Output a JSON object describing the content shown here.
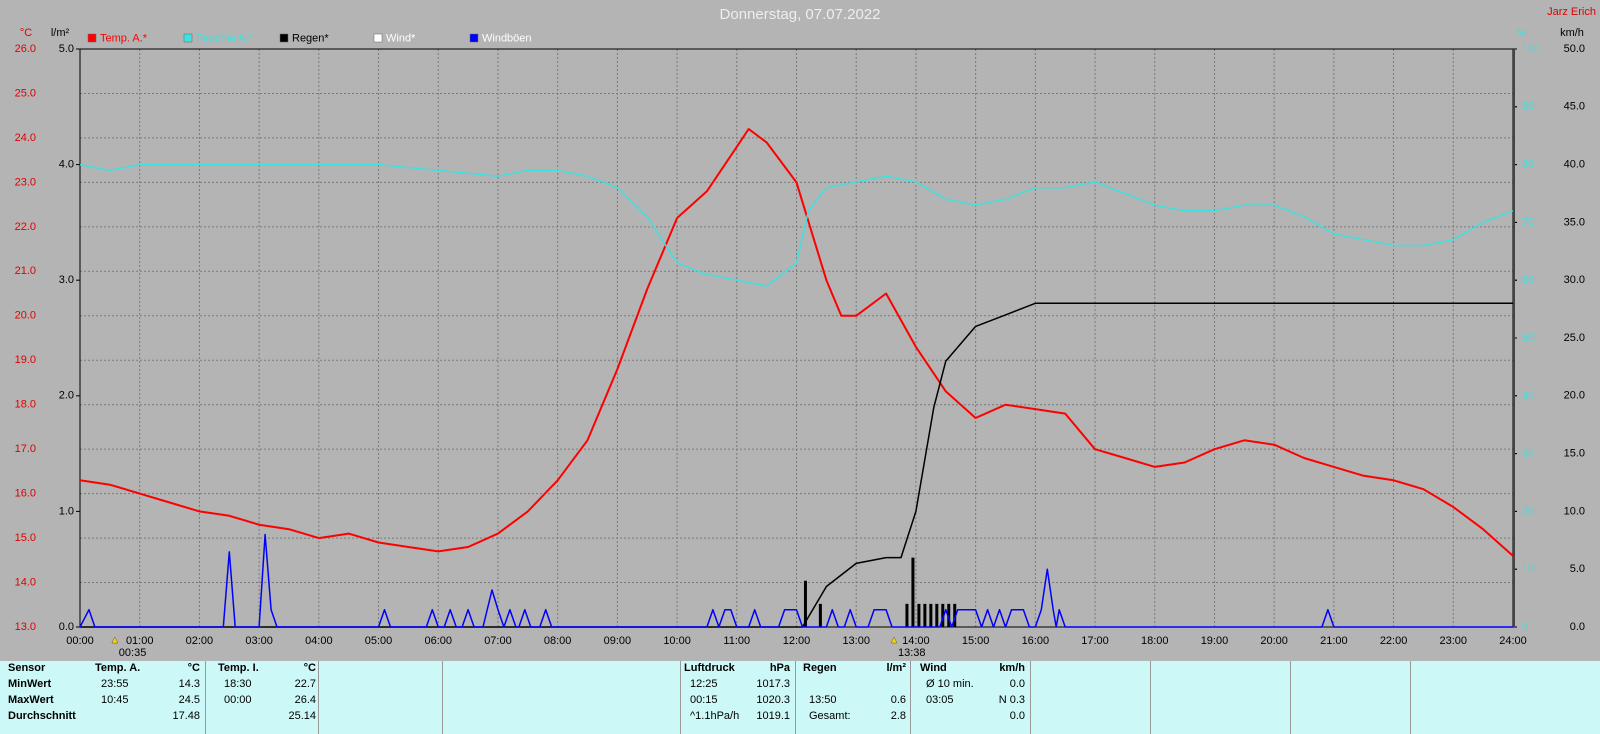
{
  "chart_data": {
    "type": "line",
    "title": "Donnerstag, 07.07.2022",
    "station": "Jarz Erich",
    "units": {
      "y": "°C",
      "y2": "l/m²",
      "y3": "%",
      "y4": "km/h"
    },
    "xlim": [
      0,
      24
    ],
    "xticks": [
      {
        "value": 0,
        "label": "00:00"
      },
      {
        "value": 1,
        "label": "01:00"
      },
      {
        "value": 2,
        "label": "02:00"
      },
      {
        "value": 3,
        "label": "03:00"
      },
      {
        "value": 4,
        "label": "04:00"
      },
      {
        "value": 5,
        "label": "05:00"
      },
      {
        "value": 6,
        "label": "06:00"
      },
      {
        "value": 7,
        "label": "07:00"
      },
      {
        "value": 8,
        "label": "08:00"
      },
      {
        "value": 9,
        "label": "09:00"
      },
      {
        "value": 10,
        "label": "10:00"
      },
      {
        "value": 11,
        "label": "11:00"
      },
      {
        "value": 12,
        "label": "12:00"
      },
      {
        "value": 13,
        "label": "13:00"
      },
      {
        "value": 14,
        "label": "14:00"
      },
      {
        "value": 15,
        "label": "15:00"
      },
      {
        "value": 16,
        "label": "16:00"
      },
      {
        "value": 17,
        "label": "17:00"
      },
      {
        "value": 18,
        "label": "18:00"
      },
      {
        "value": 19,
        "label": "19:00"
      },
      {
        "value": 20,
        "label": "20:00"
      },
      {
        "value": 21,
        "label": "21:00"
      },
      {
        "value": 22,
        "label": "22:00"
      },
      {
        "value": 23,
        "label": "23:00"
      },
      {
        "value": 24,
        "label": "24:00"
      }
    ],
    "ylim": [
      13,
      26
    ],
    "yticks": [
      {
        "value": 13,
        "label": "13.0"
      },
      {
        "value": 14,
        "label": "14.0"
      },
      {
        "value": 15,
        "label": "15.0"
      },
      {
        "value": 16,
        "label": "16.0"
      },
      {
        "value": 17,
        "label": "17.0"
      },
      {
        "value": 18,
        "label": "18.0"
      },
      {
        "value": 19,
        "label": "19.0"
      },
      {
        "value": 20,
        "label": "20.0"
      },
      {
        "value": 21,
        "label": "21.0"
      },
      {
        "value": 22,
        "label": "22.0"
      },
      {
        "value": 23,
        "label": "23.0"
      },
      {
        "value": 24,
        "label": "24.0"
      },
      {
        "value": 25,
        "label": "25.0"
      },
      {
        "value": 26,
        "label": "26.0"
      }
    ],
    "y2lim": [
      0,
      5
    ],
    "y2ticks": [
      {
        "value": 0,
        "label": "0.0"
      },
      {
        "value": 1,
        "label": "1.0"
      },
      {
        "value": 2,
        "label": "2.0"
      },
      {
        "value": 3,
        "label": "3.0"
      },
      {
        "value": 4,
        "label": "4.0"
      },
      {
        "value": 5,
        "label": "5.0"
      }
    ],
    "y3lim": [
      0,
      100
    ],
    "y3ticks": [
      0,
      10,
      20,
      30,
      40,
      50,
      60,
      70,
      80,
      90,
      100
    ],
    "y4lim": [
      0,
      50
    ],
    "y4ticks": [
      {
        "value": 0,
        "label": "0.0"
      },
      {
        "value": 5,
        "label": "5.0"
      },
      {
        "value": 10,
        "label": "10.0"
      },
      {
        "value": 15,
        "label": "15.0"
      },
      {
        "value": 20,
        "label": "20.0"
      },
      {
        "value": 25,
        "label": "25.0"
      },
      {
        "value": 30,
        "label": "30.0"
      },
      {
        "value": 35,
        "label": "35.0"
      },
      {
        "value": 40,
        "label": "40.0"
      },
      {
        "value": 45,
        "label": "45.0"
      },
      {
        "value": 50,
        "label": "50.0"
      }
    ],
    "grid": true,
    "series": [
      {
        "name": "Temp. A.*",
        "color": "#ff0000",
        "axis": "y",
        "x": [
          0,
          0.5,
          1,
          1.5,
          2,
          2.5,
          3,
          3.5,
          4,
          4.5,
          5,
          5.5,
          6,
          6.5,
          7,
          7.5,
          8,
          8.5,
          9,
          9.5,
          10,
          10.5,
          11,
          11.2,
          11.5,
          12,
          12.5,
          12.75,
          13,
          13.5,
          14,
          14.5,
          15,
          15.5,
          16,
          16.5,
          17,
          17.5,
          18,
          18.5,
          19,
          19.5,
          20,
          20.5,
          21,
          21.5,
          22,
          22.5,
          23,
          23.5,
          24
        ],
        "values": [
          16.3,
          16.2,
          16.0,
          15.8,
          15.6,
          15.5,
          15.3,
          15.2,
          15.0,
          15.1,
          14.9,
          14.8,
          14.7,
          14.8,
          15.1,
          15.6,
          16.3,
          17.2,
          18.8,
          20.6,
          22.2,
          22.8,
          23.8,
          24.2,
          23.9,
          23.0,
          20.8,
          20.0,
          20.0,
          20.5,
          19.3,
          18.3,
          17.7,
          18.0,
          17.9,
          17.8,
          17.0,
          16.8,
          16.6,
          16.7,
          17.0,
          17.2,
          17.1,
          16.8,
          16.6,
          16.4,
          16.3,
          16.1,
          15.7,
          15.2,
          14.6
        ]
      },
      {
        "name": "Feuchte A.*",
        "color": "#3fe0e0",
        "axis": "y3",
        "x": [
          0,
          0.5,
          1,
          2,
          3,
          4,
          5,
          6,
          7,
          7.5,
          8,
          8.5,
          9,
          9.5,
          10,
          10.5,
          11,
          11.5,
          12,
          12.2,
          12.5,
          13,
          13.5,
          14,
          14.5,
          15,
          15.5,
          16,
          16.5,
          17,
          17.5,
          18,
          18.5,
          19,
          19.5,
          20,
          20.5,
          21,
          21.5,
          22,
          22.5,
          23,
          23.5,
          24
        ],
        "values": [
          80,
          79,
          80,
          80,
          80,
          80,
          80,
          79,
          78,
          79,
          79,
          78,
          76,
          71,
          63,
          61,
          60,
          59,
          63,
          72,
          76,
          77,
          78,
          77,
          74,
          73,
          74,
          76,
          76,
          77,
          75,
          73,
          72,
          72,
          73,
          73,
          71,
          68,
          67,
          66,
          66,
          67,
          70,
          72
        ]
      },
      {
        "name": "Regen*",
        "color": "#000000",
        "axis": "y2",
        "x": [
          0,
          12.1,
          12.5,
          13,
          13.5,
          13.75,
          14,
          14.3,
          14.5,
          15,
          15.5,
          16,
          24
        ],
        "values": [
          0,
          0,
          0.35,
          0.55,
          0.6,
          0.6,
          1.0,
          1.9,
          2.3,
          2.6,
          2.7,
          2.8,
          2.8
        ]
      },
      {
        "name": "Wind*",
        "color": "#ffffff",
        "axis": "y4"
      },
      {
        "name": "Windböen",
        "color": "#0000ff",
        "axis": "y4",
        "x": [
          0,
          0.15,
          0.25,
          2.4,
          2.5,
          2.6,
          3.0,
          3.1,
          3.2,
          3.3,
          5.0,
          5.1,
          5.2,
          5.8,
          5.9,
          6.0,
          6.1,
          6.2,
          6.3,
          6.4,
          6.5,
          6.6,
          6.75,
          6.9,
          7.0,
          7.1,
          7.2,
          7.3,
          7.35,
          7.45,
          7.55,
          7.7,
          7.8,
          7.9,
          10.5,
          10.6,
          10.7,
          10.8,
          10.9,
          11.0,
          11.2,
          11.3,
          11.4,
          11.7,
          11.8,
          12.0,
          12.1,
          12.5,
          12.6,
          12.7,
          12.8,
          12.9,
          13.0,
          13.2,
          13.3,
          13.5,
          13.6,
          14.4,
          14.5,
          14.6,
          14.7,
          15.0,
          15.1,
          15.2,
          15.3,
          15.4,
          15.5,
          15.6,
          15.8,
          15.9,
          16.0,
          16.1,
          16.2,
          16.3,
          16.35,
          16.4,
          16.5,
          20.8,
          20.9,
          21.0,
          24
        ],
        "values": [
          0,
          1.5,
          0,
          0,
          6.5,
          0,
          0,
          8,
          1.5,
          0,
          0,
          1.5,
          0,
          0,
          1.5,
          0,
          0,
          1.5,
          0,
          0,
          1.5,
          0,
          0,
          3.2,
          1.5,
          0,
          1.5,
          0,
          0,
          1.5,
          0,
          0,
          1.5,
          0,
          0,
          1.5,
          0,
          1.5,
          1.5,
          0,
          0,
          1.5,
          0,
          0,
          1.5,
          1.5,
          0,
          0,
          1.5,
          0,
          0,
          1.5,
          0,
          0,
          1.5,
          1.5,
          0,
          0,
          1.5,
          0,
          1.5,
          1.5,
          0,
          1.5,
          0,
          1.5,
          0,
          1.5,
          1.5,
          0,
          0,
          1.5,
          5,
          1.5,
          0,
          1.5,
          0,
          0,
          1.5,
          0,
          0
        ]
      }
    ],
    "rain_bars": {
      "color": "#000000",
      "axis": "y2",
      "x": [
        12.15,
        12.4,
        13.85,
        13.95,
        14.05,
        14.15,
        14.25,
        14.35,
        14.45,
        14.55,
        14.65
      ],
      "values": [
        0.4,
        0.2,
        0.2,
        0.6,
        0.2,
        0.2,
        0.2,
        0.2,
        0.2,
        0.2,
        0.2
      ]
    },
    "annotations": [
      {
        "x": 0.583,
        "label": "00:35"
      },
      {
        "x": 13.633,
        "label": "13:38"
      }
    ]
  },
  "table": {
    "sensor": [
      "Sensor",
      "MinWert",
      "MaxWert",
      "Durchschnitt"
    ],
    "groups": [
      {
        "title": "Temp. A.",
        "unit": "°C",
        "rows": [
          {
            "time": "23:55",
            "value": "14.3"
          },
          {
            "time": "10:45",
            "value": "24.5"
          },
          {
            "value": "17.48"
          }
        ]
      },
      {
        "title": "Temp. I.",
        "unit": "°C",
        "rows": [
          {
            "time": "18:30",
            "value": "22.7"
          },
          {
            "time": "00:00",
            "value": "26.4"
          },
          {
            "value": "25.14"
          }
        ]
      },
      {
        "title": "Luftdruck",
        "unit": "hPa",
        "rows": [
          {
            "time": "12:25",
            "value": "1017.3"
          },
          {
            "time": "00:15",
            "value": "1020.3"
          },
          {
            "time": "^1.1hPa/h",
            "value": "1019.1"
          }
        ]
      },
      {
        "title": "Regen",
        "unit": "l/m²",
        "rows": [
          null,
          {
            "time": "13:50",
            "value": "0.6"
          },
          {
            "time": "Gesamt:",
            "value": "2.8"
          }
        ]
      },
      {
        "title": "Wind",
        "unit": "km/h",
        "rows": [
          {
            "time": "Ø 10 min.",
            "value": "0.0"
          },
          {
            "time": "03:05",
            "value": "N 0.3"
          },
          {
            "value": "0.0"
          }
        ]
      }
    ]
  }
}
